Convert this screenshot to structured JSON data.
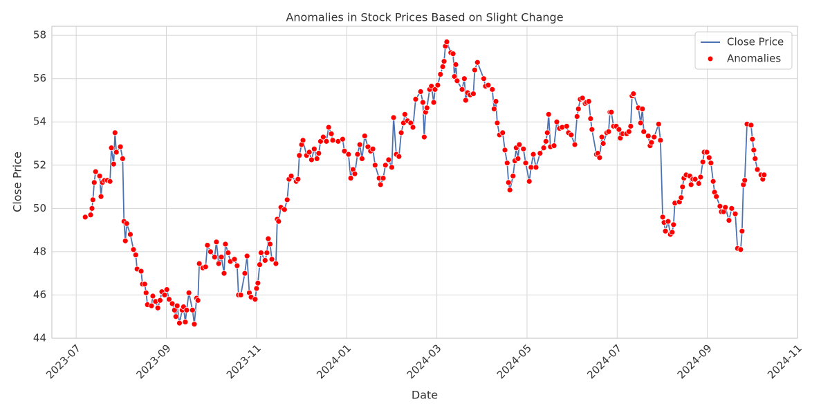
{
  "chart_data": {
    "type": "line",
    "title": "Anomalies in Stock Prices Based on Slight Change",
    "x_label": "Date",
    "y_label": "Close Price",
    "x": [
      0.2,
      0.32,
      0.35,
      0.37,
      0.4,
      0.43,
      0.52,
      0.55,
      0.58,
      0.63,
      0.69,
      0.75,
      0.78,
      0.83,
      0.86,
      0.89,
      0.98,
      1.03,
      1.06,
      1.09,
      1.12,
      1.2,
      1.27,
      1.32,
      1.35,
      1.44,
      1.47,
      1.52,
      1.55,
      1.58,
      1.67,
      1.7,
      1.76,
      1.81,
      1.86,
      1.9,
      1.96,
      2.01,
      2.06,
      2.13,
      2.18,
      2.21,
      2.24,
      2.29,
      2.35,
      2.38,
      2.42,
      2.45,
      2.5,
      2.58,
      2.62,
      2.67,
      2.7,
      2.73,
      2.81,
      2.87,
      2.91,
      2.98,
      3.07,
      3.11,
      3.16,
      3.22,
      3.28,
      3.31,
      3.37,
      3.42,
      3.51,
      3.57,
      3.6,
      3.65,
      3.74,
      3.79,
      3.84,
      3.88,
      3.97,
      4.0,
      4.03,
      4.07,
      4.1,
      4.19,
      4.23,
      4.26,
      4.3,
      4.34,
      4.43,
      4.46,
      4.49,
      4.54,
      4.62,
      4.68,
      4.72,
      4.77,
      4.88,
      4.92,
      4.95,
      5.0,
      5.03,
      5.11,
      5.17,
      5.22,
      5.28,
      5.34,
      5.38,
      5.42,
      5.48,
      5.55,
      5.6,
      5.66,
      5.69,
      5.81,
      5.91,
      5.95,
      6.04,
      6.09,
      6.14,
      6.18,
      6.24,
      6.29,
      6.34,
      6.4,
      6.47,
      6.53,
      6.58,
      6.63,
      6.72,
      6.75,
      6.81,
      6.86,
      6.93,
      7.0,
      7.04,
      7.1,
      7.16,
      7.21,
      7.26,
      7.29,
      7.35,
      7.42,
      7.47,
      7.53,
      7.64,
      7.69,
      7.72,
      7.75,
      7.78,
      7.84,
      7.88,
      7.93,
      7.96,
      8.02,
      8.08,
      8.13,
      8.16,
      8.19,
      8.22,
      8.31,
      8.36,
      8.39,
      8.42,
      8.45,
      8.56,
      8.61,
      8.64,
      8.68,
      8.74,
      8.81,
      8.84,
      8.9,
      9.04,
      9.08,
      9.14,
      9.23,
      9.27,
      9.31,
      9.34,
      9.39,
      9.46,
      9.51,
      9.56,
      9.59,
      9.62,
      9.69,
      9.73,
      9.76,
      9.8,
      9.83,
      9.92,
      9.97,
      10.05,
      10.09,
      10.14,
      10.2,
      10.29,
      10.37,
      10.42,
      10.45,
      10.48,
      10.52,
      10.6,
      10.66,
      10.72,
      10.78,
      10.88,
      10.92,
      10.98,
      11.06,
      11.11,
      11.14,
      11.18,
      11.23,
      11.29,
      11.32,
      11.37,
      11.41,
      11.44,
      11.54,
      11.57,
      11.61,
      11.66,
      11.69,
      11.77,
      11.81,
      11.84,
      11.87,
      11.92,
      11.98,
      12.04,
      12.07,
      12.12,
      12.21,
      12.26,
      12.3,
      12.33,
      12.36,
      12.47,
      12.52,
      12.56,
      12.59,
      12.69,
      12.73,
      12.76,
      12.82,
      12.92,
      12.96,
      13.01,
      13.04,
      13.07,
      13.13,
      13.18,
      13.22,
      13.25,
      13.28,
      13.38,
      13.42,
      13.45,
      13.48,
      13.53,
      13.61,
      13.64,
      13.68,
      13.73,
      13.81,
      13.85,
      13.9,
      13.93,
      13.99,
      14.04,
      14.08,
      14.13,
      14.16,
      14.2,
      14.28,
      14.31,
      14.36,
      14.4,
      14.48,
      14.54,
      14.62,
      14.67,
      14.74,
      14.77,
      14.8,
      14.83,
      14.88,
      14.97,
      15.0,
      15.03,
      15.06,
      15.11,
      15.19,
      15.23,
      15.26
    ],
    "series": [
      {
        "name": "Close Price",
        "type": "line",
        "color": "#4c72b0",
        "values": [
          49.6,
          49.7,
          50.0,
          50.4,
          51.2,
          51.7,
          51.5,
          50.55,
          51.2,
          51.3,
          51.3,
          51.25,
          52.8,
          52.05,
          53.5,
          52.6,
          52.85,
          52.3,
          49.4,
          48.5,
          49.3,
          48.8,
          48.1,
          47.85,
          47.2,
          47.1,
          46.5,
          46.5,
          46.1,
          45.55,
          45.5,
          45.95,
          45.7,
          45.4,
          45.75,
          46.15,
          46.0,
          46.25,
          45.8,
          45.6,
          45.3,
          45.0,
          45.5,
          44.7,
          45.3,
          45.45,
          44.75,
          45.3,
          46.1,
          45.3,
          44.65,
          45.85,
          45.75,
          47.45,
          47.25,
          47.3,
          48.3,
          48.0,
          47.75,
          48.45,
          47.45,
          47.75,
          47.0,
          48.35,
          47.95,
          47.55,
          47.65,
          47.35,
          46.0,
          46.0,
          47.0,
          47.8,
          46.1,
          45.9,
          45.8,
          46.3,
          46.55,
          47.4,
          47.95,
          47.6,
          47.95,
          48.6,
          48.35,
          47.65,
          47.45,
          49.5,
          49.4,
          50.05,
          49.95,
          50.4,
          51.35,
          51.5,
          51.25,
          51.35,
          52.45,
          52.95,
          53.15,
          52.45,
          52.6,
          52.25,
          52.75,
          52.3,
          52.55,
          53.1,
          53.3,
          53.1,
          53.75,
          53.45,
          53.15,
          53.1,
          53.2,
          52.65,
          52.5,
          51.4,
          51.8,
          51.6,
          52.5,
          52.95,
          52.3,
          53.35,
          52.85,
          52.65,
          52.75,
          52.0,
          51.4,
          51.1,
          51.4,
          52.0,
          52.25,
          51.9,
          54.2,
          52.5,
          52.4,
          53.5,
          53.95,
          54.35,
          54.05,
          53.95,
          53.75,
          55.05,
          55.4,
          54.9,
          53.3,
          54.45,
          54.65,
          55.5,
          55.65,
          54.9,
          55.5,
          55.7,
          56.2,
          56.55,
          56.8,
          57.5,
          57.7,
          57.2,
          57.15,
          56.1,
          56.65,
          55.9,
          55.5,
          56.0,
          55.0,
          55.35,
          55.25,
          55.3,
          56.4,
          56.75,
          56.0,
          55.65,
          55.7,
          55.5,
          54.6,
          54.95,
          53.95,
          53.4,
          53.5,
          52.7,
          52.1,
          51.2,
          50.85,
          51.5,
          52.2,
          52.8,
          52.3,
          52.95,
          52.75,
          52.1,
          51.25,
          51.9,
          52.5,
          51.9,
          52.55,
          52.8,
          53.1,
          53.5,
          54.35,
          52.85,
          52.9,
          54.0,
          53.7,
          53.75,
          53.8,
          53.5,
          53.4,
          52.95,
          54.25,
          54.6,
          55.05,
          55.1,
          54.85,
          54.9,
          54.95,
          54.15,
          53.65,
          52.5,
          52.55,
          52.35,
          53.3,
          53.0,
          53.5,
          53.55,
          54.45,
          54.45,
          53.8,
          53.8,
          53.65,
          53.25,
          53.45,
          53.45,
          53.55,
          53.8,
          55.2,
          55.3,
          54.65,
          53.95,
          54.6,
          53.55,
          53.35,
          52.9,
          53.05,
          53.3,
          53.9,
          53.15,
          49.6,
          49.35,
          48.95,
          49.4,
          48.8,
          48.9,
          49.25,
          50.25,
          50.3,
          50.5,
          51.0,
          51.4,
          51.55,
          51.5,
          51.1,
          51.35,
          51.35,
          51.15,
          51.45,
          52.15,
          52.6,
          52.6,
          52.35,
          52.1,
          51.25,
          50.75,
          50.55,
          50.1,
          49.85,
          49.85,
          50.05,
          49.45,
          50.0,
          49.75,
          48.15,
          48.1,
          48.95,
          51.1,
          51.3,
          53.9,
          53.85,
          53.2,
          52.7,
          52.3,
          51.8,
          51.55,
          51.35,
          51.55
        ]
      },
      {
        "name": "Anomalies",
        "type": "scatter",
        "color": "#ff0000",
        "values": [
          49.6,
          49.7,
          50.0,
          50.4,
          51.2,
          51.7,
          51.5,
          50.55,
          51.2,
          51.3,
          51.3,
          51.25,
          52.8,
          52.05,
          53.5,
          52.6,
          52.85,
          52.3,
          49.4,
          48.5,
          49.3,
          48.8,
          48.1,
          47.85,
          47.2,
          47.1,
          46.5,
          46.5,
          46.1,
          45.55,
          45.5,
          45.95,
          45.7,
          45.4,
          45.75,
          46.15,
          46.0,
          46.25,
          45.8,
          45.6,
          45.3,
          45.0,
          45.5,
          44.7,
          45.3,
          45.45,
          44.75,
          45.3,
          46.1,
          45.3,
          44.65,
          45.85,
          45.75,
          47.45,
          47.25,
          47.3,
          48.3,
          48.0,
          47.75,
          48.45,
          47.45,
          47.75,
          47.0,
          48.35,
          47.95,
          47.55,
          47.65,
          47.35,
          46.0,
          46.0,
          47.0,
          47.8,
          46.1,
          45.9,
          45.8,
          46.3,
          46.55,
          47.4,
          47.95,
          47.6,
          47.95,
          48.6,
          48.35,
          47.65,
          47.45,
          49.5,
          49.4,
          50.05,
          49.95,
          50.4,
          51.35,
          51.5,
          51.25,
          51.35,
          52.45,
          52.95,
          53.15,
          52.45,
          52.6,
          52.25,
          52.75,
          52.3,
          52.55,
          53.1,
          53.3,
          53.1,
          53.75,
          53.45,
          53.15,
          53.1,
          53.2,
          52.65,
          52.5,
          51.4,
          51.8,
          51.6,
          52.5,
          52.95,
          52.3,
          53.35,
          52.85,
          52.65,
          52.75,
          52.0,
          51.4,
          51.1,
          51.4,
          52.0,
          52.25,
          51.9,
          54.2,
          52.5,
          52.4,
          53.5,
          53.95,
          54.35,
          54.05,
          53.95,
          53.75,
          55.05,
          55.4,
          54.9,
          53.3,
          54.45,
          54.65,
          55.5,
          55.65,
          54.9,
          55.5,
          55.7,
          56.2,
          56.55,
          56.8,
          57.5,
          57.7,
          57.2,
          57.15,
          56.1,
          56.65,
          55.9,
          55.5,
          56.0,
          55.0,
          55.35,
          55.25,
          55.3,
          56.4,
          56.75,
          56.0,
          55.65,
          55.7,
          55.5,
          54.6,
          54.95,
          53.95,
          53.4,
          53.5,
          52.7,
          52.1,
          51.2,
          50.85,
          51.5,
          52.2,
          52.8,
          52.3,
          52.95,
          52.75,
          52.1,
          51.25,
          51.9,
          52.5,
          51.9,
          52.55,
          52.8,
          53.1,
          53.5,
          54.35,
          52.85,
          52.9,
          54.0,
          53.7,
          53.75,
          53.8,
          53.5,
          53.4,
          52.95,
          54.25,
          54.6,
          55.05,
          55.1,
          54.85,
          54.9,
          54.95,
          54.15,
          53.65,
          52.5,
          52.55,
          52.35,
          53.3,
          53.0,
          53.5,
          53.55,
          54.45,
          54.45,
          53.8,
          53.8,
          53.65,
          53.25,
          53.45,
          53.45,
          53.55,
          53.8,
          55.2,
          55.3,
          54.65,
          53.95,
          54.6,
          53.55,
          53.35,
          52.9,
          53.05,
          53.3,
          53.9,
          53.15,
          49.6,
          49.35,
          48.95,
          49.4,
          48.8,
          48.9,
          49.25,
          50.25,
          50.3,
          50.5,
          51.0,
          51.4,
          51.55,
          51.5,
          51.1,
          51.35,
          51.35,
          51.15,
          51.45,
          52.15,
          52.6,
          52.6,
          52.35,
          52.1,
          51.25,
          50.75,
          50.55,
          50.1,
          49.85,
          49.85,
          50.05,
          49.45,
          50.0,
          49.75,
          48.15,
          48.1,
          48.95,
          51.1,
          51.3,
          53.9,
          53.85,
          53.2,
          52.7,
          52.3,
          51.8,
          51.55,
          51.35,
          51.55
        ]
      }
    ],
    "xlim": [
      -0.54,
      16
    ],
    "xticks": [
      {
        "value": 0,
        "label": "2023-07"
      },
      {
        "value": 2,
        "label": "2023-09"
      },
      {
        "value": 4,
        "label": "2023-11"
      },
      {
        "value": 6,
        "label": "2024-01"
      },
      {
        "value": 8,
        "label": "2024-03"
      },
      {
        "value": 10,
        "label": "2024-05"
      },
      {
        "value": 12,
        "label": "2024-07"
      },
      {
        "value": 14,
        "label": "2024-09"
      },
      {
        "value": 16,
        "label": "2024-11"
      }
    ],
    "ylim": [
      44,
      58.42
    ],
    "yticks": [
      44,
      46,
      48,
      50,
      52,
      54,
      56,
      58
    ],
    "grid": true,
    "legend": "upper right"
  }
}
